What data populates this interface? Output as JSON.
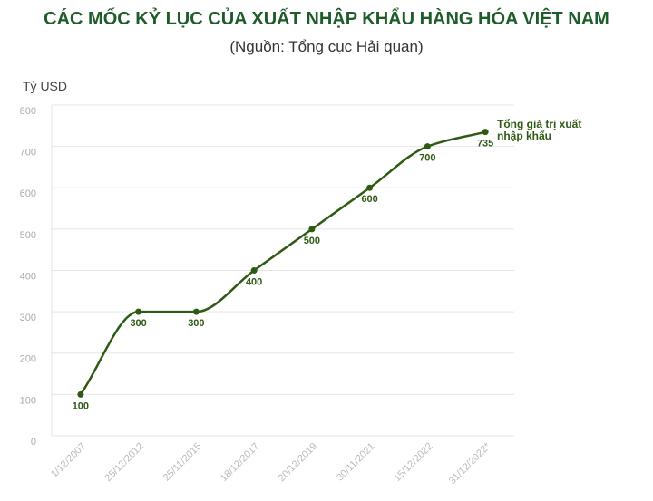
{
  "chart_data": {
    "type": "line",
    "title": "CÁC MỐC KỶ LỤC CỦA XUẤT NHẬP KHẨU HÀNG HÓA VIỆT NAM",
    "subtitle": "(Nguồn: Tổng cục Hải quan)",
    "y_label": "Tỷ USD",
    "categories": [
      "1/12/2007",
      "25/12/2012",
      "25/11/2015",
      "18/12/2017",
      "20/12/2019",
      "30/11/2021",
      "15/12/2022",
      "31/12/2022*"
    ],
    "series": [
      {
        "name": "Tổng giá trị xuất nhập khẩu",
        "color": "#2e5a14",
        "values": [
          100,
          300,
          300,
          400,
          500,
          600,
          700,
          735
        ]
      }
    ],
    "ylim": [
      0,
      800
    ],
    "yticks": [
      0,
      100,
      200,
      300,
      400,
      500,
      600,
      700,
      800
    ],
    "grid": true
  }
}
